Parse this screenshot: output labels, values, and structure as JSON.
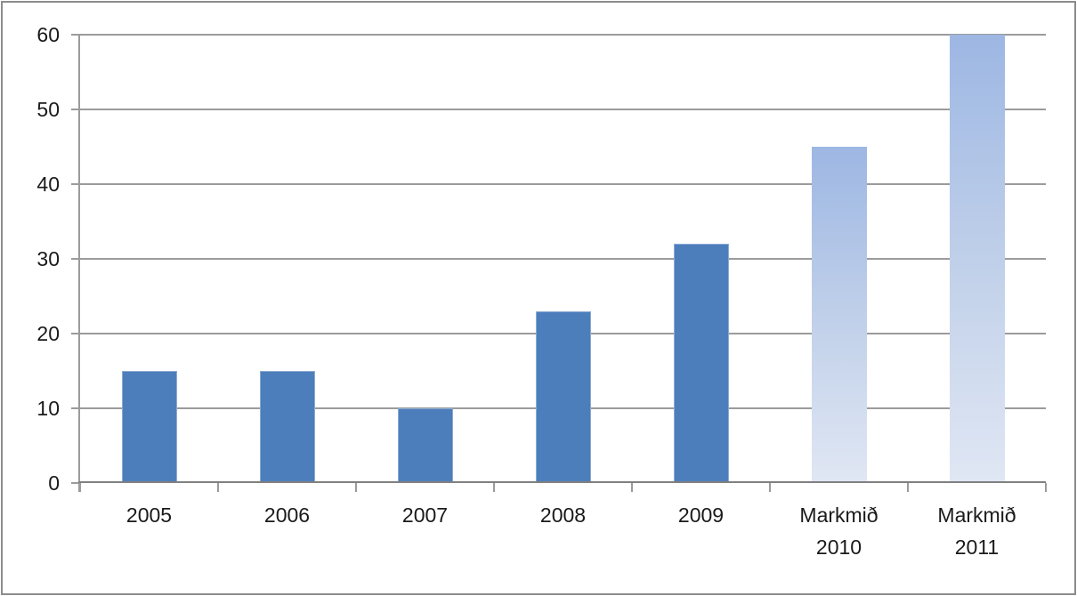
{
  "chart_data": {
    "type": "bar",
    "categories": [
      "2005",
      "2006",
      "2007",
      "2008",
      "2009",
      "Markmið\n2010",
      "Markmið\n2011"
    ],
    "values": [
      15,
      15,
      10,
      23,
      32,
      45,
      60
    ],
    "bar_styles": [
      "actual",
      "actual",
      "actual",
      "actual",
      "actual",
      "target",
      "target"
    ],
    "y_ticks": [
      0,
      10,
      20,
      30,
      40,
      50,
      60
    ],
    "ylim": [
      0,
      60
    ],
    "grid": true,
    "legend_position": "none",
    "colors": {
      "actual_bar": "#4d7ebc",
      "target_bar_top": "#9db7e3",
      "target_bar_mid": "#c3d2ea",
      "target_bar_bottom": "#e0e7f4",
      "gridline": "#9b9b9b",
      "axis": "#808080",
      "label_text": "#1a1a1a",
      "frame_border": "#8c8c8c",
      "background": "#ffffff"
    }
  }
}
